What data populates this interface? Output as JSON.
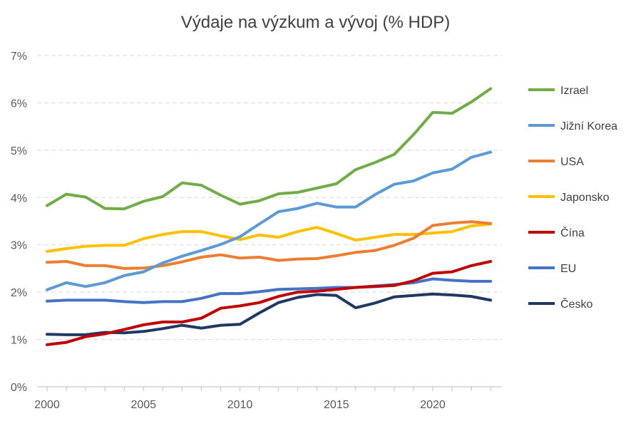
{
  "chart_data": {
    "type": "line",
    "title": "Výdaje na výzkum a vývoj (% HDP)",
    "xlabel": "",
    "ylabel": "",
    "xlim": [
      2000,
      2023
    ],
    "ylim": [
      0,
      7
    ],
    "x_ticks": [
      "2000",
      "2005",
      "2010",
      "2015",
      "2020"
    ],
    "y_ticks": [
      "0%",
      "1%",
      "2%",
      "3%",
      "4%",
      "5%",
      "6%",
      "7%"
    ],
    "grid": "horizontal dashed",
    "legend": "right",
    "x": [
      2000,
      2001,
      2002,
      2003,
      2004,
      2005,
      2006,
      2007,
      2008,
      2009,
      2010,
      2011,
      2012,
      2013,
      2014,
      2015,
      2016,
      2017,
      2018,
      2019,
      2020,
      2021,
      2022,
      2023
    ],
    "series": [
      {
        "name": "Izrael",
        "color": "#70ad47",
        "values": [
          3.83,
          4.07,
          4.01,
          3.77,
          3.76,
          3.92,
          4.02,
          4.31,
          4.26,
          4.05,
          3.86,
          3.93,
          4.08,
          4.11,
          4.2,
          4.29,
          4.59,
          4.74,
          4.91,
          5.33,
          5.8,
          5.78,
          6.02,
          6.3
        ]
      },
      {
        "name": "Jižní Korea",
        "color": "#5b9bd5",
        "values": [
          2.05,
          2.2,
          2.12,
          2.2,
          2.35,
          2.43,
          2.62,
          2.76,
          2.88,
          3.01,
          3.17,
          3.44,
          3.7,
          3.77,
          3.88,
          3.8,
          3.8,
          4.06,
          4.28,
          4.35,
          4.52,
          4.6,
          4.85,
          4.96
        ]
      },
      {
        "name": "USA",
        "color": "#ed7d31",
        "values": [
          2.63,
          2.65,
          2.56,
          2.56,
          2.5,
          2.51,
          2.56,
          2.64,
          2.74,
          2.79,
          2.72,
          2.74,
          2.67,
          2.7,
          2.71,
          2.77,
          2.84,
          2.88,
          2.99,
          3.14,
          3.41,
          3.46,
          3.49,
          3.45
        ]
      },
      {
        "name": "Japonsko",
        "color": "#ffc000",
        "values": [
          2.86,
          2.92,
          2.97,
          2.99,
          2.99,
          3.13,
          3.22,
          3.28,
          3.28,
          3.19,
          3.11,
          3.21,
          3.16,
          3.28,
          3.37,
          3.24,
          3.1,
          3.16,
          3.22,
          3.22,
          3.25,
          3.28,
          3.4,
          3.44
        ]
      },
      {
        "name": "Čína",
        "color": "#c00000",
        "values": [
          0.89,
          0.94,
          1.06,
          1.12,
          1.21,
          1.31,
          1.37,
          1.37,
          1.45,
          1.66,
          1.71,
          1.78,
          1.91,
          2.0,
          2.02,
          2.06,
          2.1,
          2.12,
          2.14,
          2.24,
          2.4,
          2.43,
          2.56,
          2.65
        ]
      },
      {
        "name": "EU",
        "color": "#4472c4",
        "values": [
          1.81,
          1.83,
          1.83,
          1.83,
          1.8,
          1.78,
          1.8,
          1.8,
          1.87,
          1.97,
          1.97,
          2.01,
          2.06,
          2.07,
          2.08,
          2.1,
          2.1,
          2.13,
          2.16,
          2.2,
          2.28,
          2.25,
          2.23,
          2.23
        ]
      },
      {
        "name": "Česko",
        "color": "#203864",
        "values": [
          1.11,
          1.1,
          1.1,
          1.15,
          1.14,
          1.17,
          1.23,
          1.3,
          1.24,
          1.3,
          1.32,
          1.56,
          1.78,
          1.89,
          1.95,
          1.93,
          1.67,
          1.77,
          1.9,
          1.93,
          1.96,
          1.94,
          1.91,
          1.83
        ]
      }
    ]
  }
}
